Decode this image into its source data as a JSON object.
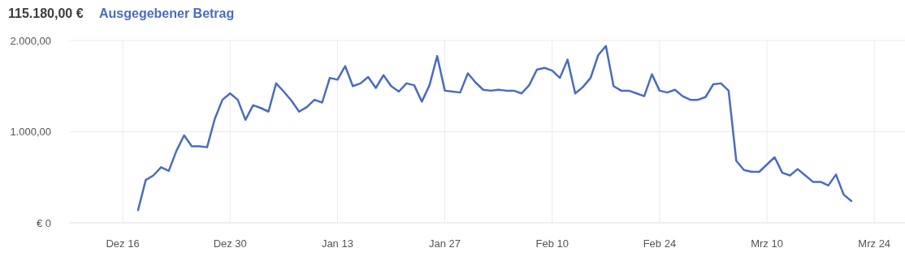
{
  "chart_data": {
    "type": "line",
    "title": "115.180,00 €",
    "categories": [
      "Dez 16",
      null,
      null,
      null,
      null,
      null,
      null,
      null,
      null,
      null,
      null,
      null,
      null,
      null,
      "Dez 30",
      null,
      null,
      null,
      null,
      null,
      null,
      null,
      null,
      null,
      null,
      null,
      null,
      null,
      "Jan 13",
      null,
      null,
      null,
      null,
      null,
      null,
      null,
      null,
      null,
      null,
      null,
      null,
      null,
      "Jan 27",
      null,
      null,
      null,
      null,
      null,
      null,
      null,
      null,
      null,
      null,
      null,
      null,
      null,
      "Feb 10",
      null,
      null,
      null,
      null,
      null,
      null,
      null,
      null,
      null,
      null,
      null,
      null,
      null,
      "Feb 24",
      null,
      null,
      null,
      null,
      null,
      null,
      null,
      null,
      null,
      null,
      null,
      null,
      null,
      "Mrz 10",
      null,
      null,
      null,
      null,
      null,
      null,
      null,
      null,
      null,
      null,
      null,
      null,
      null,
      "Mrz 24"
    ],
    "series": [
      {
        "name": "Ausgegebener Betrag",
        "color": "#4a6cc0",
        "values": [
          null,
          null,
          140,
          470,
          520,
          610,
          570,
          790,
          960,
          840,
          840,
          830,
          1140,
          1350,
          1420,
          1350,
          1130,
          1290,
          1260,
          1220,
          1530,
          1440,
          1340,
          1220,
          1270,
          1350,
          1320,
          1590,
          1570,
          1720,
          1500,
          1530,
          1600,
          1480,
          1620,
          1500,
          1440,
          1530,
          1510,
          1330,
          1510,
          1830,
          1450,
          1440,
          1430,
          1640,
          1540,
          1460,
          1450,
          1460,
          1450,
          1450,
          1420,
          1510,
          1680,
          1700,
          1670,
          1590,
          1790,
          1420,
          1490,
          1590,
          1840,
          1940,
          1500,
          1450,
          1450,
          1420,
          1390,
          1630,
          1450,
          1430,
          1460,
          1390,
          1350,
          1350,
          1380,
          1520,
          1530,
          1450,
          680,
          580,
          560,
          560,
          640,
          720,
          550,
          520,
          590,
          520,
          450,
          450,
          410,
          530,
          310,
          240,
          null,
          null,
          null
        ]
      }
    ],
    "ylim": [
      0,
      2000
    ],
    "yticks": [
      {
        "value": 0,
        "label": "€ 0"
      },
      {
        "value": 1000,
        "label": "1.000,00"
      },
      {
        "value": 2000,
        "label": "2.000,00"
      }
    ],
    "grid": true,
    "legend": "top left",
    "line_style": "solid",
    "marker": "none"
  }
}
